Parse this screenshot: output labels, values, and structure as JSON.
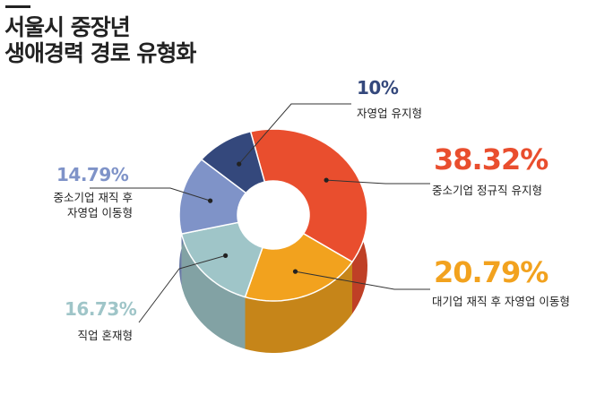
{
  "title_lines": [
    "서울시 중장년",
    "생애경력 경로 유형화"
  ],
  "chart_data": {
    "type": "pie",
    "style": "3d-donut",
    "unit": "%",
    "slices": [
      {
        "label": "중소기업 정규직 유지형",
        "value": 38.32,
        "display": "38.32%",
        "color": "#e94e2e"
      },
      {
        "label": "대기업 재직 후 자영업 이동형",
        "value": 20.79,
        "display": "20.79%",
        "color": "#f2a21e"
      },
      {
        "label": "직업 혼재형",
        "value": 16.73,
        "display": "16.73%",
        "color": "#9fc5c8"
      },
      {
        "label": "중소기업 재직 후 자영업 이동형",
        "label_lines": [
          "중소기업 재직 후",
          "자영업 이동형"
        ],
        "value": 14.79,
        "display": "14.79%",
        "color": "#7f93c8"
      },
      {
        "label": "자영업 유지형",
        "value": 10,
        "display": "10%",
        "color": "#34487c"
      }
    ]
  }
}
